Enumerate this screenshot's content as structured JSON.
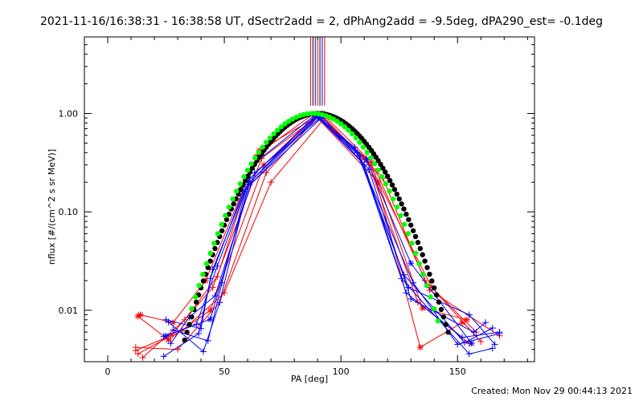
{
  "title": "2021-11-16/16:38:31 - 16:38:58 UT, dSectr2add = 2, dPhAng2add = -9.5deg, dPA290_est= -0.1deg",
  "created": "Created: Mon Nov 29 00:44:13 2021",
  "colors": {
    "red": "#ff0000",
    "blue": "#0000ff",
    "green": "#00ff00",
    "black": "#000000"
  },
  "chart_data": {
    "type": "line",
    "title": "2021-11-16/16:38:31 - 16:38:58 UT, dSectr2add = 2, dPhAng2add = -9.5deg, dPA290_est= -0.1deg",
    "xlabel": "PA [deg]",
    "ylabel": "nflux [#/(cm^2 s sr MeV)]",
    "xlim": [
      -10,
      183
    ],
    "ylim": [
      0.003,
      6
    ],
    "yscale": "log",
    "x_ticks": [
      0,
      50,
      100,
      150
    ],
    "x_tick_labels": [
      "0",
      "50",
      "100",
      "150"
    ],
    "y_ticks": [
      0.01,
      0.1,
      1.0
    ],
    "y_tick_labels": [
      "0.01",
      "0.10",
      "1.00"
    ],
    "series": [
      {
        "color": "red",
        "marker": "plus",
        "x": [
          13,
          27,
          45,
          66,
          90,
          112,
          133,
          155
        ],
        "y": [
          0.0036,
          0.0055,
          0.017,
          0.35,
          0.93,
          0.3,
          0.012,
          0.0046
        ]
      },
      {
        "color": "red",
        "marker": "plus",
        "x": [
          12,
          30,
          48,
          68,
          91,
          115,
          138,
          168
        ],
        "y": [
          0.0042,
          0.004,
          0.012,
          0.25,
          0.97,
          0.26,
          0.016,
          0.0055
        ]
      },
      {
        "color": "red",
        "marker": "star",
        "x": [
          14,
          28,
          42,
          65,
          92,
          113,
          134,
          152
        ],
        "y": [
          0.009,
          0.0075,
          0.02,
          0.42,
          1.0,
          0.32,
          0.0042,
          0.0075
        ]
      },
      {
        "color": "red",
        "marker": "plus",
        "x": [
          12,
          32,
          50,
          70,
          93,
          118,
          136,
          158
        ],
        "y": [
          0.0039,
          0.0062,
          0.015,
          0.2,
          0.9,
          0.22,
          0.02,
          0.006
        ]
      },
      {
        "color": "red",
        "marker": "star",
        "x": [
          13,
          26,
          44,
          67,
          89,
          116,
          135,
          154
        ],
        "y": [
          0.0087,
          0.005,
          0.01,
          0.3,
          0.95,
          0.2,
          0.0105,
          0.008
        ]
      },
      {
        "color": "red",
        "marker": "plus",
        "x": [
          15,
          33,
          47,
          64,
          88,
          111,
          139,
          160
        ],
        "y": [
          0.0033,
          0.008,
          0.022,
          0.38,
          0.98,
          0.35,
          0.017,
          0.0048
        ]
      },
      {
        "color": "blue",
        "marker": "plus",
        "x": [
          24,
          38,
          47,
          60,
          89,
          108,
          128,
          152,
          168
        ],
        "y": [
          0.0054,
          0.0072,
          0.028,
          0.19,
          0.95,
          0.37,
          0.015,
          0.0053,
          0.006
        ]
      },
      {
        "color": "blue",
        "marker": "plus",
        "x": [
          25,
          40,
          44,
          58,
          90,
          106,
          131,
          150,
          168
        ],
        "y": [
          0.008,
          0.0065,
          0.021,
          0.16,
          0.93,
          0.45,
          0.019,
          0.0045,
          0.0058
        ]
      },
      {
        "color": "blue",
        "marker": "plus",
        "x": [
          27,
          35,
          46,
          63,
          91,
          110,
          126,
          155,
          165
        ],
        "y": [
          0.0046,
          0.0085,
          0.014,
          0.25,
          0.9,
          0.3,
          0.021,
          0.0036,
          0.0041
        ]
      },
      {
        "color": "blue",
        "marker": "plus",
        "x": [
          28,
          43,
          49,
          62,
          89,
          112,
          130,
          157,
          162
        ],
        "y": [
          0.0063,
          0.0049,
          0.019,
          0.3,
          0.97,
          0.27,
          0.013,
          0.006,
          0.0075
        ]
      },
      {
        "color": "blue",
        "marker": "plus",
        "x": [
          24,
          39,
          45,
          59,
          92,
          109,
          129,
          155,
          166
        ],
        "y": [
          0.0034,
          0.0058,
          0.026,
          0.17,
          0.92,
          0.32,
          0.017,
          0.009,
          0.0045
        ]
      },
      {
        "color": "blue",
        "marker": "plus",
        "x": [
          26,
          41,
          48,
          61,
          90,
          107,
          127,
          153,
          165
        ],
        "y": [
          0.0076,
          0.0038,
          0.012,
          0.22,
          0.96,
          0.4,
          0.023,
          0.0047,
          0.0066
        ]
      },
      {
        "color": "blue",
        "marker": "star",
        "x": [
          25,
          44,
          61,
          90,
          111,
          130,
          156
        ],
        "y": [
          0.0055,
          0.0081,
          0.2,
          0.94,
          0.34,
          0.03,
          0.0046
        ]
      },
      {
        "color": "black",
        "marker": "dots",
        "curve": "gaussian",
        "center": 90,
        "peak": 1.0,
        "sigma": 17.5,
        "x_range": [
          33,
          146
        ],
        "step": 1.0
      },
      {
        "color": "green",
        "marker": "dots",
        "curve": "gaussian",
        "center": 88,
        "peak": 1.0,
        "sigma": 17.2,
        "x_range": [
          36,
          142
        ],
        "step": 1.6
      }
    ],
    "top_bars": {
      "x": [
        87,
        88,
        89,
        90,
        91,
        92,
        93
      ],
      "colors": [
        "red",
        "black",
        "blue",
        "red",
        "black",
        "blue",
        "red"
      ],
      "y_from": 1.2,
      "y_to": 6
    },
    "grid": false,
    "legend": "none"
  }
}
